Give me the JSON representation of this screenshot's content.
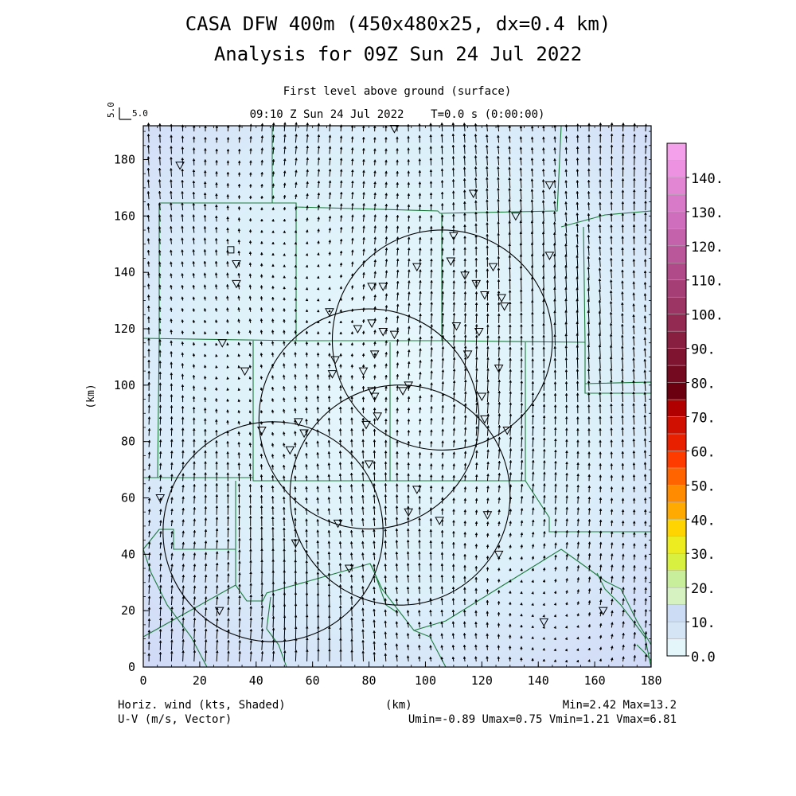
{
  "header": {
    "title_line1": "CASA DFW 400m (450x480x25, dx=0.4 km)",
    "title_line2": "Analysis for 09Z Sun 24 Jul 2022",
    "subtitle": "First level above ground (surface)",
    "time_line": "09:10 Z Sun 24 Jul 2022    T=0.0 s (0:00:00)",
    "ref_vector_v": "5.0",
    "ref_vector_u": "5.0"
  },
  "axes": {
    "x_ticks": [
      "0",
      "20",
      "40",
      "60",
      "80",
      "100",
      "120",
      "140",
      "160",
      "180"
    ],
    "y_ticks": [
      "0",
      "20",
      "40",
      "60",
      "80",
      "100",
      "120",
      "140",
      "160",
      "180"
    ],
    "y_label": "(km)",
    "x_label": "(km)",
    "xlim": [
      0,
      180
    ],
    "ylim": [
      0,
      192
    ]
  },
  "colorbar": {
    "labels": [
      "0.0",
      "10.",
      "20.",
      "30.",
      "40.",
      "50.",
      "60.",
      "70.",
      "80.",
      "90.",
      "100.",
      "110.",
      "120.",
      "130.",
      "140."
    ],
    "colors": [
      "#e4f6fa",
      "#d5e5f6",
      "#ccdcf4",
      "#d6f2c0",
      "#c8ee9c",
      "#d8f040",
      "#ecec20",
      "#ffd400",
      "#ffaa00",
      "#ff8c00",
      "#ff6400",
      "#ff3c00",
      "#e82000",
      "#d01000",
      "#b00000",
      "#6a0010",
      "#740a20",
      "#7e1430",
      "#881e40",
      "#922a52",
      "#9c3464",
      "#a63e76",
      "#b04a88",
      "#ba569a",
      "#c462ac",
      "#ce6ebc",
      "#d87ac8",
      "#e286d4",
      "#ec92e0",
      "#f4a0ea"
    ]
  },
  "footer": {
    "left_line1": "Horiz. wind (kts, Shaded)",
    "left_line2": "U-V (m/s, Vector)",
    "center_line1": "(km)",
    "right_line1": "Min=2.42 Max=13.2",
    "right_line2": "Umin=-0.89 Umax=0.75 Vmin=1.21 Vmax=6.81"
  },
  "map": {
    "radar_rings_km": [
      {
        "cx": 106,
        "cy": 116,
        "r": 39
      },
      {
        "cx": 80,
        "cy": 88,
        "r": 39
      },
      {
        "cx": 91,
        "cy": 61,
        "r": 39
      },
      {
        "cx": 46,
        "cy": 48,
        "r": 39
      }
    ],
    "stations_km": [
      [
        13,
        178
      ],
      [
        28,
        115
      ],
      [
        31,
        148
      ],
      [
        33,
        143
      ],
      [
        33,
        136
      ],
      [
        36,
        105
      ],
      [
        42,
        84
      ],
      [
        52,
        77
      ],
      [
        55,
        87
      ],
      [
        57,
        83
      ],
      [
        54,
        44
      ],
      [
        66,
        126
      ],
      [
        67,
        104
      ],
      [
        68,
        109
      ],
      [
        69,
        51
      ],
      [
        73,
        35
      ],
      [
        76,
        120
      ],
      [
        78,
        105
      ],
      [
        79,
        86
      ],
      [
        80,
        72
      ],
      [
        81,
        135
      ],
      [
        81,
        122
      ],
      [
        82,
        111
      ],
      [
        81,
        98
      ],
      [
        82,
        96
      ],
      [
        83,
        89
      ],
      [
        85,
        135
      ],
      [
        85,
        119
      ],
      [
        89,
        118
      ],
      [
        92,
        98
      ],
      [
        94,
        100
      ],
      [
        94,
        55
      ],
      [
        97,
        142
      ],
      [
        97,
        63
      ],
      [
        105,
        52
      ],
      [
        109,
        144
      ],
      [
        110,
        153
      ],
      [
        111,
        121
      ],
      [
        114,
        139
      ],
      [
        115,
        111
      ],
      [
        117,
        168
      ],
      [
        118,
        136
      ],
      [
        119,
        119
      ],
      [
        120,
        96
      ],
      [
        121,
        88
      ],
      [
        121,
        132
      ],
      [
        122,
        54
      ],
      [
        124,
        142
      ],
      [
        126,
        40
      ],
      [
        126,
        106
      ],
      [
        127,
        131
      ],
      [
        128,
        128
      ],
      [
        129,
        84
      ],
      [
        132,
        160
      ],
      [
        142,
        16
      ],
      [
        144,
        146
      ],
      [
        144,
        171
      ],
      [
        163,
        20
      ],
      [
        6,
        60
      ],
      [
        27,
        20
      ],
      [
        89,
        191
      ]
    ]
  }
}
